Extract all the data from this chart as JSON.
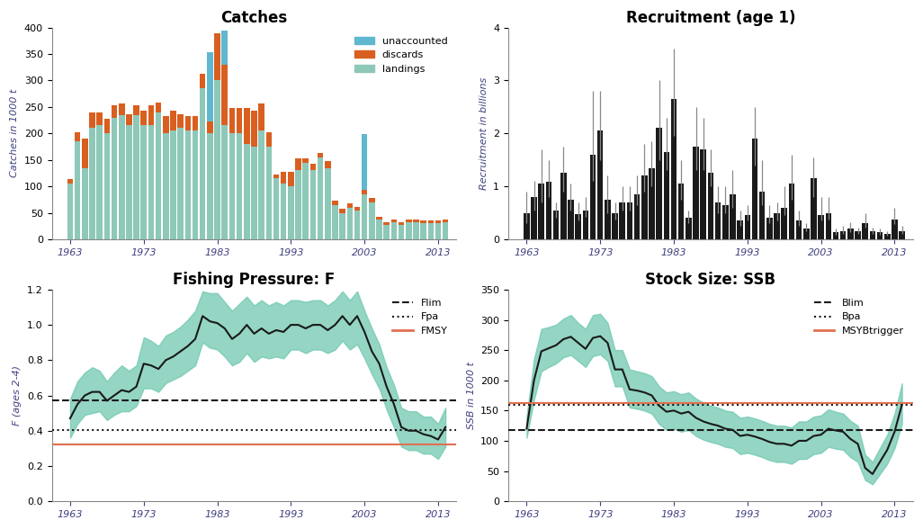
{
  "catches": {
    "years": [
      1963,
      1964,
      1965,
      1966,
      1967,
      1968,
      1969,
      1970,
      1971,
      1972,
      1973,
      1974,
      1975,
      1976,
      1977,
      1978,
      1979,
      1980,
      1981,
      1982,
      1983,
      1984,
      1985,
      1986,
      1987,
      1988,
      1989,
      1990,
      1991,
      1992,
      1993,
      1994,
      1995,
      1996,
      1997,
      1998,
      1999,
      2000,
      2001,
      2002,
      2003,
      2004,
      2005,
      2006,
      2007,
      2008,
      2009,
      2010,
      2011,
      2012,
      2013,
      2014
    ],
    "landings": [
      105,
      185,
      135,
      210,
      215,
      200,
      230,
      235,
      215,
      235,
      215,
      215,
      240,
      200,
      205,
      210,
      205,
      205,
      285,
      200,
      300,
      215,
      200,
      200,
      180,
      175,
      205,
      175,
      115,
      105,
      100,
      130,
      145,
      130,
      155,
      135,
      65,
      50,
      60,
      55,
      85,
      70,
      37,
      27,
      32,
      27,
      32,
      32,
      30,
      30,
      30,
      32
    ],
    "discards": [
      8,
      18,
      55,
      30,
      25,
      27,
      23,
      22,
      22,
      18,
      28,
      38,
      18,
      33,
      38,
      26,
      28,
      28,
      28,
      23,
      90,
      115,
      48,
      48,
      68,
      68,
      52,
      28,
      8,
      23,
      28,
      23,
      8,
      13,
      8,
      13,
      8,
      8,
      8,
      6,
      8,
      8,
      5,
      5,
      5,
      5,
      5,
      5,
      5,
      5,
      5,
      5
    ],
    "unaccounted": [
      0,
      0,
      0,
      0,
      0,
      0,
      0,
      0,
      0,
      0,
      0,
      0,
      0,
      0,
      0,
      0,
      0,
      0,
      0,
      130,
      0,
      65,
      0,
      0,
      0,
      0,
      0,
      0,
      0,
      0,
      0,
      0,
      0,
      0,
      0,
      0,
      0,
      0,
      0,
      0,
      105,
      0,
      0,
      0,
      0,
      0,
      0,
      0,
      0,
      0,
      0,
      0
    ],
    "title": "Catches",
    "ylabel": "Catches in 1000 t",
    "ylim": [
      0,
      400
    ],
    "landing_color": "#8dc8b8",
    "discard_color": "#d95f20",
    "unaccounted_color": "#60b8d0"
  },
  "recruitment": {
    "years": [
      1963,
      1964,
      1965,
      1966,
      1967,
      1968,
      1969,
      1970,
      1971,
      1972,
      1973,
      1974,
      1975,
      1976,
      1977,
      1978,
      1979,
      1980,
      1981,
      1982,
      1983,
      1984,
      1985,
      1986,
      1987,
      1988,
      1989,
      1990,
      1991,
      1992,
      1993,
      1994,
      1995,
      1996,
      1997,
      1998,
      1999,
      2000,
      2001,
      2002,
      2003,
      2004,
      2005,
      2006,
      2007,
      2008,
      2009,
      2010,
      2011,
      2012,
      2013,
      2014
    ],
    "values": [
      0.5,
      0.8,
      1.05,
      1.08,
      0.55,
      1.25,
      0.75,
      0.48,
      0.55,
      1.6,
      2.05,
      0.75,
      0.5,
      0.7,
      0.7,
      0.85,
      1.2,
      1.35,
      2.1,
      1.65,
      2.65,
      1.05,
      0.4,
      1.75,
      1.7,
      1.25,
      0.7,
      0.65,
      0.85,
      0.35,
      0.45,
      1.9,
      0.9,
      0.4,
      0.5,
      0.6,
      1.05,
      0.35,
      0.2,
      1.15,
      0.45,
      0.5,
      0.13,
      0.15,
      0.2,
      0.15,
      0.3,
      0.15,
      0.13,
      0.1,
      0.38,
      0.15
    ],
    "err_low": [
      0.3,
      0.55,
      0.7,
      0.8,
      0.4,
      0.9,
      0.55,
      0.35,
      0.42,
      1.1,
      1.5,
      0.5,
      0.38,
      0.55,
      0.55,
      0.65,
      0.9,
      1.0,
      1.5,
      1.3,
      1.95,
      0.75,
      0.3,
      1.3,
      1.3,
      1.0,
      0.5,
      0.5,
      0.6,
      0.25,
      0.35,
      1.4,
      0.65,
      0.3,
      0.35,
      0.45,
      0.75,
      0.25,
      0.15,
      0.8,
      0.35,
      0.38,
      0.09,
      0.1,
      0.14,
      0.1,
      0.22,
      0.1,
      0.09,
      0.07,
      0.28,
      0.1
    ],
    "err_high": [
      0.9,
      1.1,
      1.7,
      1.5,
      0.7,
      1.75,
      1.05,
      0.7,
      0.8,
      2.8,
      2.8,
      1.2,
      0.7,
      1.0,
      1.0,
      1.2,
      1.8,
      1.85,
      3.0,
      2.3,
      3.6,
      1.5,
      0.55,
      2.5,
      2.3,
      1.7,
      1.0,
      1.0,
      1.3,
      0.55,
      0.65,
      2.5,
      1.5,
      0.65,
      0.7,
      1.0,
      1.6,
      0.55,
      0.3,
      1.55,
      0.8,
      0.8,
      0.2,
      0.25,
      0.32,
      0.22,
      0.5,
      0.22,
      0.2,
      0.15,
      0.6,
      0.25
    ],
    "title": "Recruitment (age 1)",
    "ylabel": "Recruitment in billions",
    "ylim": [
      0,
      4
    ],
    "bar_color": "#1a1a1a"
  },
  "fishing": {
    "years": [
      1963,
      1964,
      1965,
      1966,
      1967,
      1968,
      1969,
      1970,
      1971,
      1972,
      1973,
      1974,
      1975,
      1976,
      1977,
      1978,
      1979,
      1980,
      1981,
      1982,
      1983,
      1984,
      1985,
      1986,
      1987,
      1988,
      1989,
      1990,
      1991,
      1992,
      1993,
      1994,
      1995,
      1996,
      1997,
      1998,
      1999,
      2000,
      2001,
      2002,
      2003,
      2004,
      2005,
      2006,
      2007,
      2008,
      2009,
      2010,
      2011,
      2012,
      2013,
      2014
    ],
    "F": [
      0.47,
      0.55,
      0.6,
      0.62,
      0.62,
      0.57,
      0.6,
      0.63,
      0.62,
      0.65,
      0.78,
      0.77,
      0.75,
      0.8,
      0.82,
      0.85,
      0.88,
      0.92,
      1.05,
      1.02,
      1.01,
      0.98,
      0.92,
      0.95,
      1.0,
      0.95,
      0.98,
      0.95,
      0.97,
      0.96,
      1.0,
      1.0,
      0.98,
      1.0,
      1.0,
      0.97,
      1.0,
      1.05,
      1.0,
      1.05,
      0.96,
      0.85,
      0.78,
      0.65,
      0.55,
      0.42,
      0.4,
      0.4,
      0.38,
      0.37,
      0.35,
      0.42
    ],
    "F_low": [
      0.36,
      0.44,
      0.49,
      0.5,
      0.51,
      0.46,
      0.49,
      0.51,
      0.51,
      0.54,
      0.64,
      0.64,
      0.62,
      0.67,
      0.69,
      0.71,
      0.74,
      0.77,
      0.9,
      0.87,
      0.86,
      0.82,
      0.77,
      0.79,
      0.84,
      0.79,
      0.82,
      0.81,
      0.82,
      0.81,
      0.86,
      0.86,
      0.84,
      0.86,
      0.86,
      0.84,
      0.86,
      0.91,
      0.86,
      0.89,
      0.81,
      0.72,
      0.64,
      0.52,
      0.42,
      0.31,
      0.29,
      0.29,
      0.27,
      0.27,
      0.24,
      0.31
    ],
    "F_high": [
      0.58,
      0.68,
      0.73,
      0.76,
      0.74,
      0.68,
      0.73,
      0.77,
      0.74,
      0.77,
      0.93,
      0.91,
      0.88,
      0.94,
      0.96,
      0.99,
      1.03,
      1.08,
      1.19,
      1.18,
      1.18,
      1.13,
      1.08,
      1.12,
      1.16,
      1.11,
      1.14,
      1.11,
      1.13,
      1.11,
      1.14,
      1.14,
      1.13,
      1.14,
      1.14,
      1.11,
      1.14,
      1.19,
      1.14,
      1.19,
      1.08,
      0.98,
      0.89,
      0.76,
      0.66,
      0.53,
      0.51,
      0.51,
      0.48,
      0.48,
      0.44,
      0.53
    ],
    "Flim": 0.574,
    "Fpa": 0.406,
    "FMSY": 0.32,
    "title": "Fishing Pressure: F",
    "ylabel": "F (ages 2-4)",
    "ylim": [
      0,
      1.2
    ],
    "line_color": "#1a1a1a",
    "band_color": "#70c8b0",
    "ref_line_color_dash": "#1a1a1a",
    "FMSY_color": "#e07050"
  },
  "ssb": {
    "years": [
      1963,
      1964,
      1965,
      1966,
      1967,
      1968,
      1969,
      1970,
      1971,
      1972,
      1973,
      1974,
      1975,
      1976,
      1977,
      1978,
      1979,
      1980,
      1981,
      1982,
      1983,
      1984,
      1985,
      1986,
      1987,
      1988,
      1989,
      1990,
      1991,
      1992,
      1993,
      1994,
      1995,
      1996,
      1997,
      1998,
      1999,
      2000,
      2001,
      2002,
      2003,
      2004,
      2005,
      2006,
      2007,
      2008,
      2009,
      2010,
      2011,
      2012,
      2013,
      2014
    ],
    "SSB": [
      120,
      200,
      248,
      253,
      258,
      268,
      272,
      262,
      252,
      270,
      273,
      262,
      218,
      218,
      185,
      183,
      180,
      175,
      158,
      148,
      150,
      145,
      148,
      138,
      132,
      128,
      125,
      120,
      118,
      108,
      110,
      107,
      103,
      98,
      95,
      95,
      92,
      100,
      100,
      108,
      110,
      120,
      117,
      115,
      103,
      95,
      55,
      45,
      65,
      85,
      115,
      160
    ],
    "SSB_low": [
      105,
      168,
      215,
      222,
      228,
      238,
      242,
      232,
      222,
      240,
      243,
      232,
      190,
      190,
      155,
      153,
      150,
      145,
      128,
      118,
      120,
      115,
      118,
      108,
      102,
      98,
      95,
      90,
      88,
      78,
      80,
      77,
      73,
      68,
      65,
      65,
      62,
      70,
      70,
      78,
      80,
      90,
      87,
      85,
      73,
      65,
      35,
      28,
      45,
      62,
      88,
      128
    ],
    "SSB_high": [
      140,
      235,
      285,
      288,
      292,
      302,
      308,
      295,
      285,
      308,
      310,
      295,
      250,
      250,
      218,
      215,
      212,
      207,
      190,
      180,
      182,
      177,
      180,
      170,
      163,
      158,
      155,
      150,
      148,
      138,
      140,
      137,
      133,
      128,
      125,
      125,
      122,
      132,
      132,
      140,
      142,
      152,
      148,
      145,
      133,
      125,
      77,
      65,
      88,
      110,
      145,
      195
    ],
    "Blim": 118,
    "Bpa": 160,
    "MSYBtrigger": 163,
    "title": "Stock Size: SSB",
    "ylabel": "SSB in 1000 t",
    "ylim": [
      0,
      350
    ],
    "line_color": "#1a1a1a",
    "band_color": "#70c8b0",
    "Blim_color": "#1a1a1a",
    "MSYBtrigger_color": "#e07050"
  }
}
